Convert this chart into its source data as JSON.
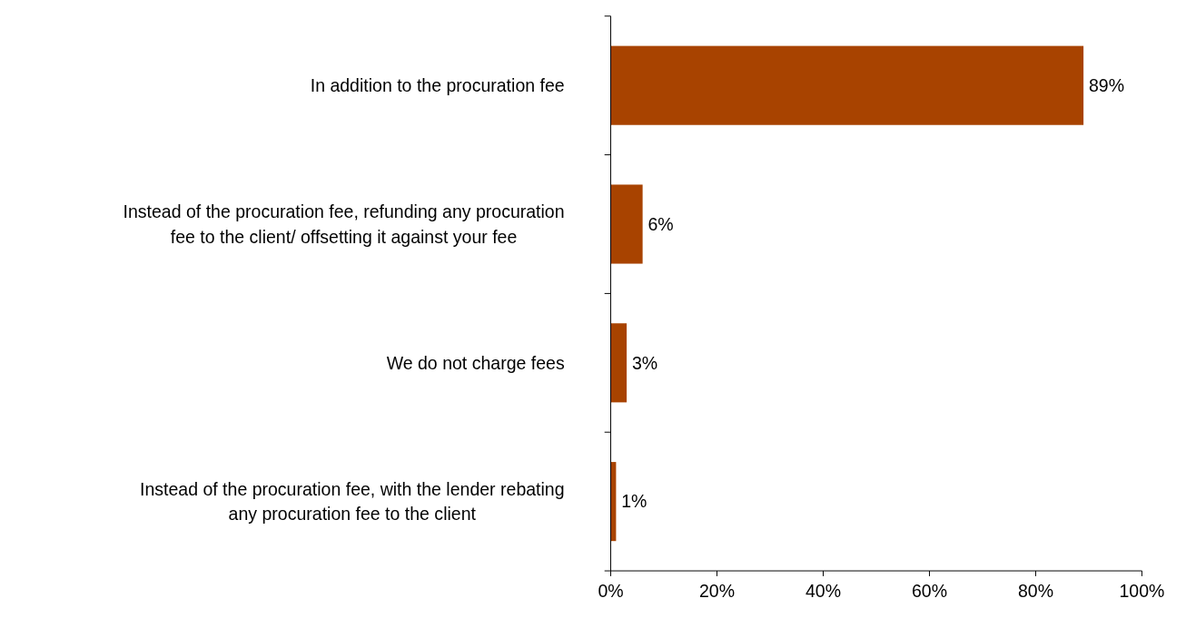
{
  "chart_data": {
    "type": "bar",
    "orientation": "horizontal",
    "categories": [
      "In addition to the procuration fee",
      "Instead of the procuration fee, refunding any procuration fee to the client/ offsetting it against your fee",
      "We do not charge fees",
      "Instead of the procuration fee, with the lender rebating any procuration fee to the client"
    ],
    "values": [
      89,
      6,
      3,
      1
    ],
    "value_labels": [
      "89%",
      "6%",
      "3%",
      "1%"
    ],
    "color": "#a84300",
    "xlim": [
      0,
      100
    ],
    "xticks": [
      {
        "value": 0,
        "label": "0%"
      },
      {
        "value": 20,
        "label": "20%"
      },
      {
        "value": 40,
        "label": "40%"
      },
      {
        "value": 60,
        "label": "60%"
      },
      {
        "value": 80,
        "label": "80%"
      },
      {
        "value": 100,
        "label": "100%"
      }
    ],
    "grid": false
  }
}
